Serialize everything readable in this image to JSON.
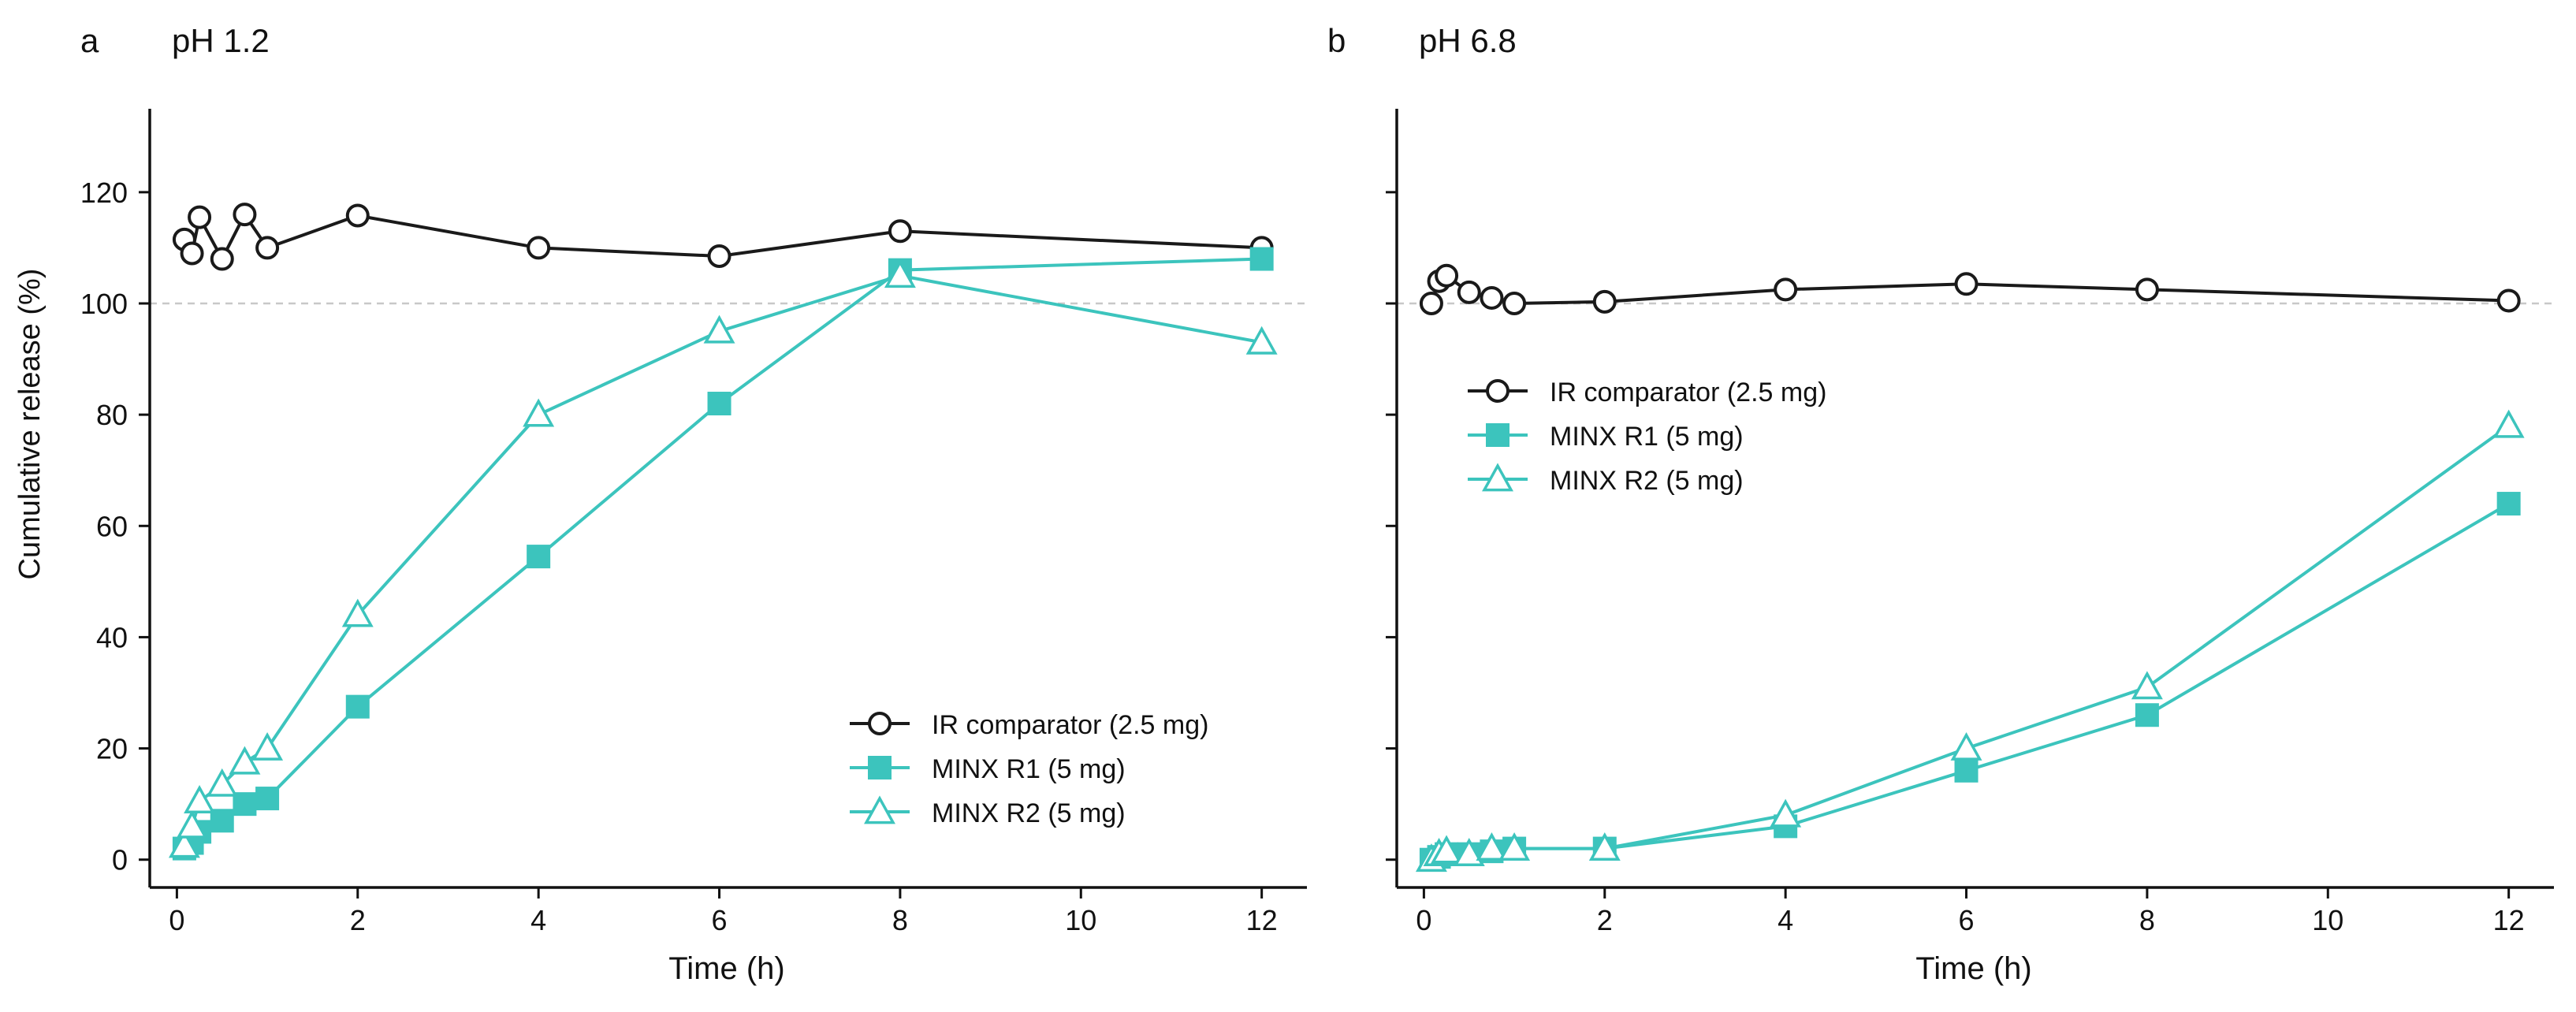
{
  "figure": {
    "ylabel": "Cumulative release (%)",
    "xlabel": "Time (h)"
  },
  "colors": {
    "ir": "#1a1a1a",
    "minx": "#3cc4bd",
    "reference_line": "#c8c8c8"
  },
  "chart_data": [
    {
      "type": "line",
      "panel_letter": "a",
      "title": "pH 1.2",
      "xlabel": "Time (h)",
      "ylabel": "Cumulative release (%)",
      "xlim": [
        -0.3,
        12.5
      ],
      "ylim": [
        -5,
        135
      ],
      "xticks": [
        0,
        2,
        4,
        6,
        8,
        10,
        12
      ],
      "yticks": [
        0,
        20,
        40,
        60,
        80,
        100,
        120
      ],
      "reference_line_y": 100,
      "legend_position": "lower-right",
      "series": [
        {
          "name": "IR comparator (2.5 mg)",
          "marker": "circle-open",
          "color": "#1a1a1a",
          "x": [
            0.083,
            0.167,
            0.25,
            0.5,
            0.75,
            1,
            2,
            4,
            6,
            8,
            12
          ],
          "y": [
            111.5,
            109,
            115.5,
            108,
            116,
            110,
            115.8,
            110,
            108.5,
            113,
            110
          ]
        },
        {
          "name": "MINX R1 (5 mg)",
          "marker": "square-filled",
          "color": "#3cc4bd",
          "x": [
            0.083,
            0.167,
            0.25,
            0.5,
            0.75,
            1,
            2,
            4,
            6,
            8,
            12
          ],
          "y": [
            2,
            3,
            5,
            7,
            10,
            11,
            27.5,
            54.5,
            82,
            106,
            108
          ]
        },
        {
          "name": "MINX R2 (5 mg)",
          "marker": "triangle-open",
          "color": "#3cc4bd",
          "x": [
            0.083,
            0.167,
            0.25,
            0.5,
            0.75,
            1,
            2,
            4,
            6,
            8,
            12
          ],
          "y": [
            2.5,
            6,
            10.5,
            13.5,
            17.5,
            20,
            44,
            80,
            95,
            105,
            93
          ]
        }
      ]
    },
    {
      "type": "line",
      "panel_letter": "b",
      "title": "pH 6.8",
      "xlabel": "Time (h)",
      "ylabel": "",
      "xlim": [
        -0.3,
        12.5
      ],
      "ylim": [
        -5,
        135
      ],
      "xticks": [
        0,
        2,
        4,
        6,
        8,
        10,
        12
      ],
      "yticks": [
        0,
        20,
        40,
        60,
        80,
        100,
        120
      ],
      "reference_line_y": 100,
      "legend_position": "center-left",
      "series": [
        {
          "name": "IR comparator (2.5 mg)",
          "marker": "circle-open",
          "color": "#1a1a1a",
          "x": [
            0.083,
            0.167,
            0.25,
            0.5,
            0.75,
            1,
            2,
            4,
            6,
            8,
            12
          ],
          "y": [
            100,
            104,
            105,
            102,
            101,
            100,
            100.3,
            102.5,
            103.5,
            102.5,
            100.5
          ]
        },
        {
          "name": "MINX R1 (5 mg)",
          "marker": "square-filled",
          "color": "#3cc4bd",
          "x": [
            0.083,
            0.167,
            0.25,
            0.5,
            0.75,
            1,
            2,
            4,
            6,
            8,
            12
          ],
          "y": [
            0,
            0.5,
            1,
            1,
            1.5,
            2,
            2,
            6,
            16,
            26,
            64
          ]
        },
        {
          "name": "MINX R2 (5 mg)",
          "marker": "triangle-open",
          "color": "#3cc4bd",
          "x": [
            0.083,
            0.167,
            0.25,
            0.5,
            0.75,
            1,
            2,
            4,
            6,
            8,
            12
          ],
          "y": [
            0,
            1,
            1.5,
            1,
            2,
            2,
            2,
            8,
            20,
            31,
            78
          ]
        }
      ]
    }
  ]
}
